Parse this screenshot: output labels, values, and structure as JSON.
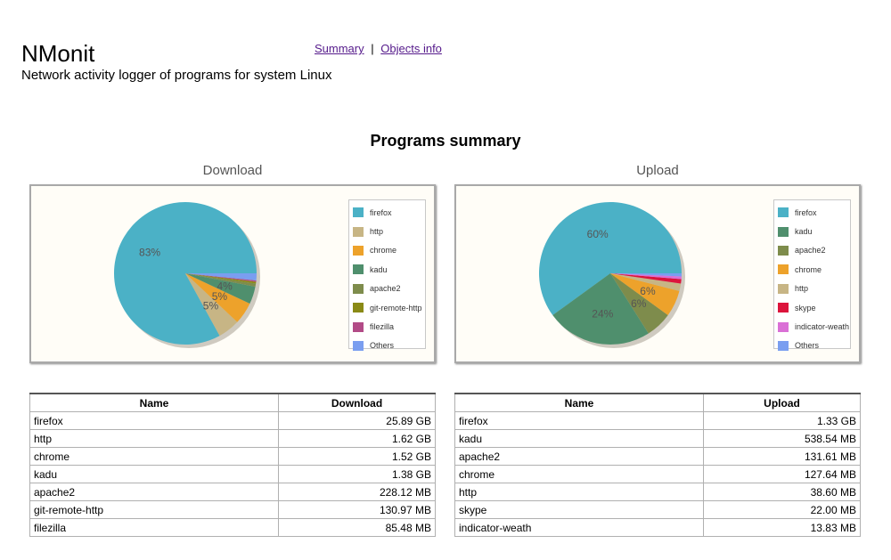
{
  "app": {
    "title": "NMonit",
    "subtitle": "Network activity logger of programs for system Linux"
  },
  "nav": {
    "summary": "Summary",
    "separator": "|",
    "objects_info": "Objects info"
  },
  "page_heading": "Programs summary",
  "download": {
    "title": "Download",
    "legend": [
      "firefox",
      "http",
      "chrome",
      "kadu",
      "apache2",
      "git-remote-http",
      "filezilla",
      "Others"
    ],
    "table": {
      "headers": [
        "Name",
        "Download"
      ],
      "rows": [
        [
          "firefox",
          "25.89 GB"
        ],
        [
          "http",
          "1.62 GB"
        ],
        [
          "chrome",
          "1.52 GB"
        ],
        [
          "kadu",
          "1.38 GB"
        ],
        [
          "apache2",
          "228.12 MB"
        ],
        [
          "git-remote-http",
          "130.97 MB"
        ],
        [
          "filezilla",
          "85.48 MB"
        ]
      ]
    }
  },
  "upload": {
    "title": "Upload",
    "legend": [
      "firefox",
      "kadu",
      "apache2",
      "chrome",
      "http",
      "skype",
      "indicator-weath",
      "Others"
    ],
    "table": {
      "headers": [
        "Name",
        "Upload"
      ],
      "rows": [
        [
          "firefox",
          "1.33 GB"
        ],
        [
          "kadu",
          "538.54 MB"
        ],
        [
          "apache2",
          "131.61 MB"
        ],
        [
          "chrome",
          "127.64 MB"
        ],
        [
          "http",
          "38.60 MB"
        ],
        [
          "skype",
          "22.00 MB"
        ],
        [
          "indicator-weath",
          "13.83 MB"
        ]
      ]
    }
  },
  "chart_data": [
    {
      "type": "pie",
      "title": "Download",
      "labels": [
        "firefox",
        "http",
        "chrome",
        "kadu",
        "apache2",
        "git-remote-http",
        "filezilla",
        "Others"
      ],
      "values": [
        83,
        5,
        5,
        4,
        0.7,
        0.4,
        0.3,
        1.6
      ],
      "data_labels": [
        "83%",
        "5%",
        "5%",
        "4%",
        "",
        "",
        "",
        ""
      ],
      "colors": [
        "#4bb1c6",
        "#c7b585",
        "#eda22b",
        "#4f8f6d",
        "#7e8c4c",
        "#8a8a16",
        "#b24b87",
        "#7a9ef0"
      ],
      "legend_position": "right"
    },
    {
      "type": "pie",
      "title": "Upload",
      "labels": [
        "firefox",
        "kadu",
        "apache2",
        "chrome",
        "http",
        "skype",
        "indicator-weath",
        "Others"
      ],
      "values": [
        60,
        24,
        6,
        6,
        1.7,
        1,
        0.6,
        0.7
      ],
      "data_labels": [
        "60%",
        "24%",
        "6%",
        "6%",
        "",
        "",
        "",
        ""
      ],
      "colors": [
        "#4bb1c6",
        "#4f8f6d",
        "#7e8c4c",
        "#eda22b",
        "#c7b585",
        "#dc143c",
        "#da70d6",
        "#7a9ef0"
      ],
      "legend_position": "right"
    }
  ]
}
